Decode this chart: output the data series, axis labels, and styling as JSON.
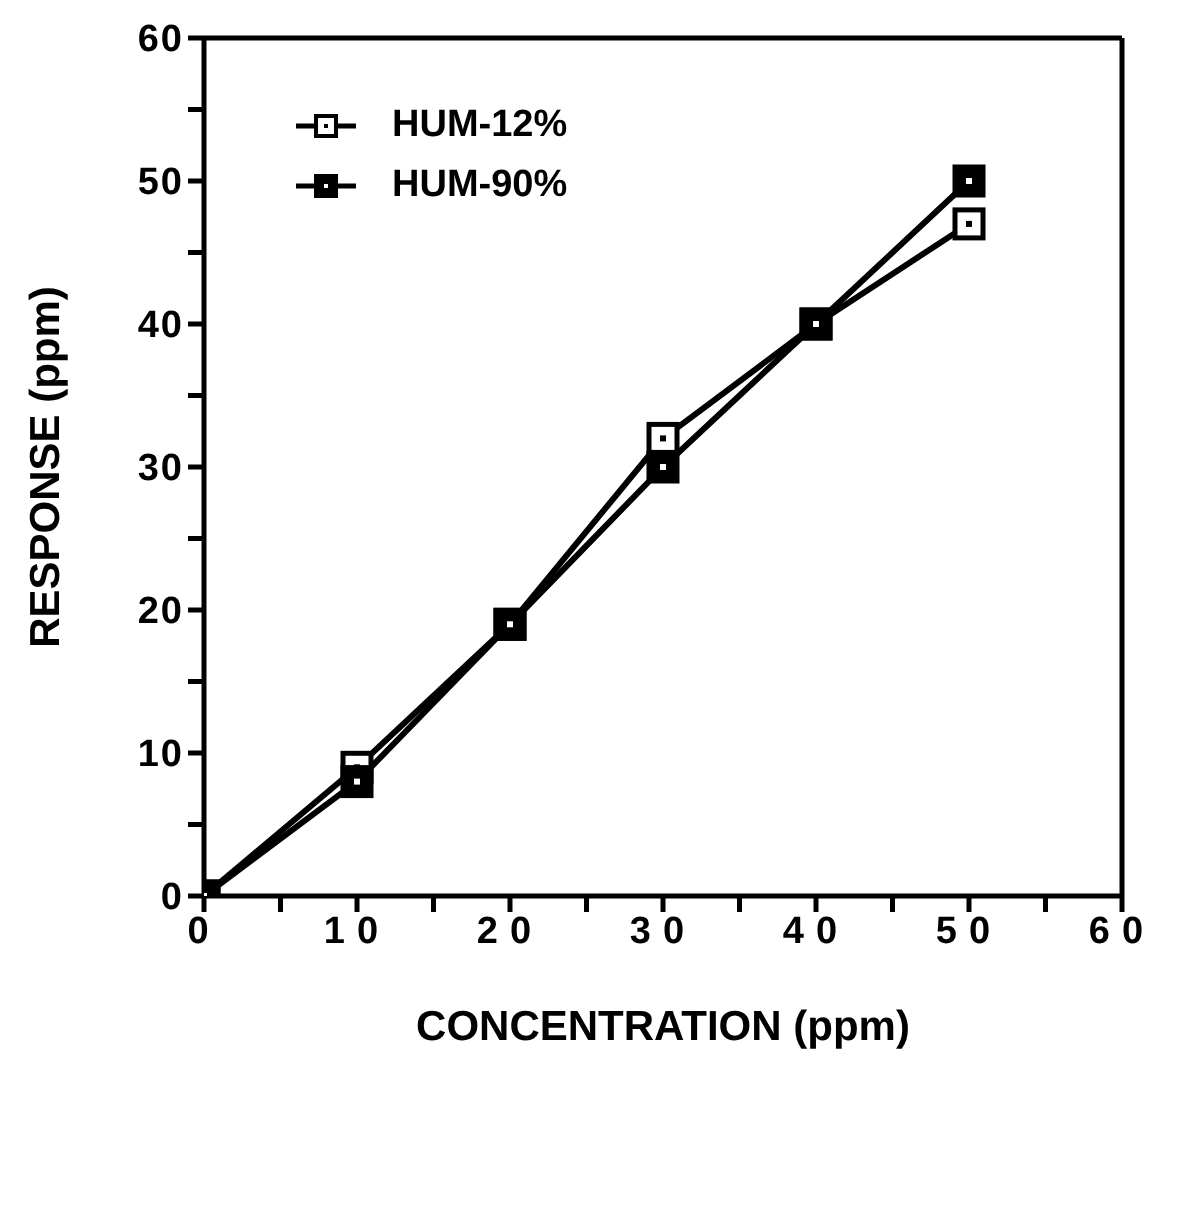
{
  "chart_data": {
    "type": "line",
    "xlabel": "CONCENTRATION (ppm)",
    "ylabel": "RESPONSE (ppm)",
    "x": [
      0,
      10,
      20,
      30,
      40,
      50
    ],
    "series": [
      {
        "name": "HUM-12%",
        "color": "#000000",
        "values": [
          0,
          9,
          19,
          32,
          40,
          47
        ]
      },
      {
        "name": "HUM-90%",
        "color": "#000000",
        "values": [
          0,
          8,
          19,
          30,
          40,
          50
        ]
      }
    ],
    "xlim": [
      0,
      60
    ],
    "ylim": [
      0,
      60
    ],
    "xticks": [
      0,
      {
        "value": 5,
        "label": null
      },
      10,
      {
        "value": 15,
        "label": null
      },
      20,
      {
        "value": 25,
        "label": null
      },
      30,
      {
        "value": 35,
        "label": null
      },
      40,
      {
        "value": 45,
        "label": null
      },
      50,
      {
        "value": 55,
        "label": null
      },
      60
    ],
    "yticks": [
      0,
      {
        "value": 5,
        "label": null
      },
      10,
      {
        "value": 15,
        "label": null
      },
      20,
      {
        "value": 25,
        "label": null
      },
      30,
      {
        "value": 35,
        "label": null
      },
      40,
      {
        "value": 45,
        "label": null
      },
      50,
      {
        "value": 55,
        "label": null
      },
      60
    ],
    "grid": false,
    "legend": "top left",
    "marker": "square",
    "line_style": "solid"
  }
}
